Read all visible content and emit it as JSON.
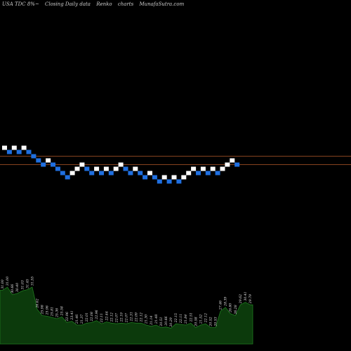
{
  "header": {
    "symbol": "USA TDC 8%~",
    "caption": "Closing Daily data",
    "chart_kind": "Renko",
    "word": "charts",
    "site": "MunafaSutra.com"
  },
  "colors": {
    "up_brick": "#ffffff",
    "down_brick": "#1f6fe0",
    "level_line": "#b35a2a",
    "volume_fill": "#0c3a0c",
    "volume_line": "#1f7a1f",
    "background": "#000000"
  },
  "chart_data": {
    "type": "renko",
    "bricks": [
      {
        "dir": "up",
        "row": 0
      },
      {
        "dir": "down",
        "row": 1
      },
      {
        "dir": "up",
        "row": 0
      },
      {
        "dir": "down",
        "row": 1
      },
      {
        "dir": "up",
        "row": 0
      },
      {
        "dir": "down",
        "row": 1
      },
      {
        "dir": "down",
        "row": 2
      },
      {
        "dir": "down",
        "row": 3
      },
      {
        "dir": "down",
        "row": 4
      },
      {
        "dir": "up",
        "row": 3
      },
      {
        "dir": "down",
        "row": 4
      },
      {
        "dir": "down",
        "row": 5
      },
      {
        "dir": "down",
        "row": 6
      },
      {
        "dir": "down",
        "row": 7
      },
      {
        "dir": "up",
        "row": 6
      },
      {
        "dir": "up",
        "row": 5
      },
      {
        "dir": "up",
        "row": 4
      },
      {
        "dir": "down",
        "row": 5
      },
      {
        "dir": "down",
        "row": 6
      },
      {
        "dir": "up",
        "row": 5
      },
      {
        "dir": "down",
        "row": 6
      },
      {
        "dir": "up",
        "row": 5
      },
      {
        "dir": "down",
        "row": 6
      },
      {
        "dir": "up",
        "row": 5
      },
      {
        "dir": "up",
        "row": 4
      },
      {
        "dir": "down",
        "row": 5
      },
      {
        "dir": "down",
        "row": 6
      },
      {
        "dir": "up",
        "row": 5
      },
      {
        "dir": "down",
        "row": 6
      },
      {
        "dir": "down",
        "row": 7
      },
      {
        "dir": "up",
        "row": 6
      },
      {
        "dir": "down",
        "row": 7
      },
      {
        "dir": "down",
        "row": 8
      },
      {
        "dir": "up",
        "row": 7
      },
      {
        "dir": "down",
        "row": 8
      },
      {
        "dir": "up",
        "row": 7
      },
      {
        "dir": "down",
        "row": 8
      },
      {
        "dir": "up",
        "row": 7
      },
      {
        "dir": "up",
        "row": 6
      },
      {
        "dir": "up",
        "row": 5
      },
      {
        "dir": "down",
        "row": 6
      },
      {
        "dir": "up",
        "row": 5
      },
      {
        "dir": "down",
        "row": 6
      },
      {
        "dir": "up",
        "row": 5
      },
      {
        "dir": "down",
        "row": 6
      },
      {
        "dir": "up",
        "row": 5
      },
      {
        "dir": "up",
        "row": 4
      },
      {
        "dir": "up",
        "row": 3
      },
      {
        "dir": "down",
        "row": 4
      }
    ],
    "volume_labels": [
      "31.00",
      "31.00",
      "30.66",
      "30.40",
      "31.03",
      "31.45",
      "31.55",
      "26.62",
      "25.98",
      "25.96",
      "25.81",
      "25.36",
      "25.58",
      "22.96",
      "23.41",
      "21.46",
      "21.37",
      "22.01",
      "22.08",
      "22.96",
      "22.11",
      "22.44",
      "22.12",
      "22.07",
      "22.19",
      "22.07",
      "22.31",
      "22.09",
      "22.12",
      "21.30",
      "21.14",
      "21.48",
      "20.51",
      "20.66",
      "20.29",
      "22.15",
      "22.11",
      "21.84",
      "22.51",
      "20.58",
      "21.52",
      "22.12",
      "20.52",
      "20.53",
      "27.46",
      "28.39",
      "26.80",
      "26.28",
      "29.62",
      "30.41",
      "29.79"
    ],
    "volume_levels": [
      0.85,
      0.9,
      0.78,
      0.8,
      0.84,
      0.86,
      0.9,
      0.55,
      0.45,
      0.44,
      0.42,
      0.4,
      0.43,
      0.34,
      0.36,
      0.3,
      0.3,
      0.33,
      0.34,
      0.37,
      0.32,
      0.35,
      0.33,
      0.32,
      0.33,
      0.32,
      0.34,
      0.33,
      0.33,
      0.3,
      0.28,
      0.3,
      0.26,
      0.27,
      0.25,
      0.32,
      0.31,
      0.3,
      0.33,
      0.26,
      0.3,
      0.32,
      0.26,
      0.26,
      0.52,
      0.58,
      0.48,
      0.45,
      0.62,
      0.66,
      0.62
    ]
  }
}
